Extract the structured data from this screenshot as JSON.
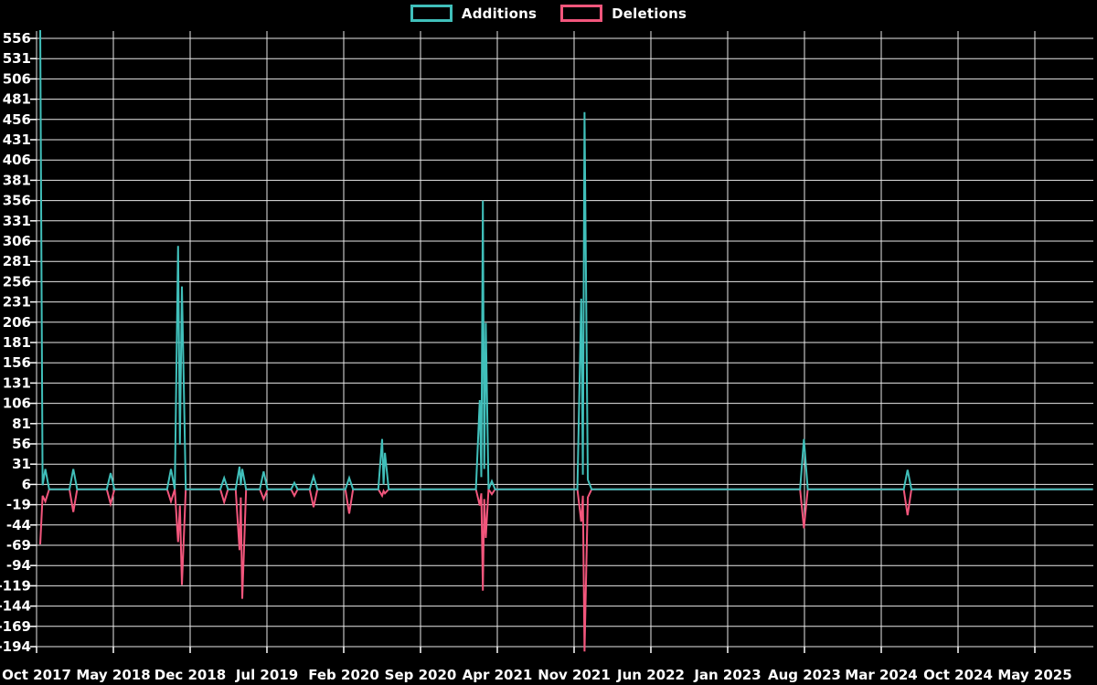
{
  "legend": {
    "items": [
      {
        "label": "Additions"
      },
      {
        "label": "Deletions"
      }
    ]
  },
  "chart_data": {
    "type": "line",
    "title": "",
    "background_color": "#000000",
    "grid_color": "#e8e8e8",
    "text_color": "#ffffff",
    "legend_position": "top-center",
    "grid": true,
    "x_axis": {
      "unit": "months_since_oct_2017",
      "tick_labels": [
        "Oct 2017",
        "May 2018",
        "Dec 2018",
        "Jul 2019",
        "Feb 2020",
        "Sep 2020",
        "Apr 2021",
        "Nov 2021",
        "Jun 2022",
        "Jan 2023",
        "Aug 2023",
        "Mar 2024",
        "Oct 2024",
        "May 2025"
      ],
      "tick_positions": [
        0,
        7,
        14,
        21,
        28,
        35,
        42,
        49,
        56,
        63,
        70,
        77,
        84,
        91
      ],
      "range": [
        0,
        96.3
      ]
    },
    "y_axis": {
      "min": -194,
      "max": 556,
      "tick_step": 25,
      "tick_values": [
        556,
        531,
        506,
        481,
        456,
        431,
        406,
        381,
        356,
        331,
        306,
        281,
        256,
        231,
        206,
        181,
        156,
        131,
        106,
        81,
        56,
        31,
        6,
        -19,
        -44,
        -69,
        -94,
        -119,
        -144,
        -169,
        -194
      ],
      "tick_labels": [
        "556",
        "531",
        "506",
        "481",
        "456",
        "431",
        "406",
        "381",
        "356",
        "331",
        "306",
        "281",
        "256",
        "231",
        "206",
        "181",
        "156",
        "131",
        "106",
        "81",
        "56",
        "31",
        "6",
        "-19",
        "-44",
        "-69",
        "-94",
        "-119",
        "-144",
        "-169",
        "-194"
      ]
    },
    "series": [
      {
        "name": "Additions",
        "color": "#40bfba",
        "points_key": 1
      },
      {
        "name": "Deletions",
        "color": "#f2567c",
        "points_key": 2
      }
    ],
    "points_format": [
      "months_since_oct_2017",
      "additions",
      "deletions"
    ],
    "points": [
      [
        0.33,
        570,
        -68
      ],
      [
        0.55,
        5,
        -8
      ],
      [
        0.8,
        25,
        -15
      ],
      [
        1.15,
        0,
        0
      ],
      [
        3.0,
        0,
        0
      ],
      [
        3.35,
        25,
        -28
      ],
      [
        3.7,
        0,
        0
      ],
      [
        6.4,
        0,
        0
      ],
      [
        6.75,
        20,
        -18
      ],
      [
        7.1,
        0,
        0
      ],
      [
        11.9,
        0,
        0
      ],
      [
        12.25,
        25,
        -15
      ],
      [
        12.6,
        0,
        0
      ],
      [
        12.9,
        300,
        -65
      ],
      [
        13.07,
        55,
        -20
      ],
      [
        13.25,
        250,
        -118
      ],
      [
        13.6,
        0,
        0
      ],
      [
        16.75,
        0,
        0
      ],
      [
        17.1,
        14,
        -16
      ],
      [
        17.45,
        0,
        0
      ],
      [
        18.15,
        0,
        0
      ],
      [
        18.5,
        28,
        -75
      ],
      [
        18.62,
        5,
        -10
      ],
      [
        18.75,
        25,
        -135
      ],
      [
        19.1,
        0,
        0
      ],
      [
        20.35,
        0,
        0
      ],
      [
        20.7,
        22,
        -12
      ],
      [
        21.05,
        0,
        0
      ],
      [
        23.2,
        0,
        0
      ],
      [
        23.5,
        8,
        -8
      ],
      [
        23.8,
        0,
        0
      ],
      [
        24.9,
        0,
        0
      ],
      [
        25.25,
        16,
        -22
      ],
      [
        25.6,
        0,
        0
      ],
      [
        28.15,
        0,
        0
      ],
      [
        28.5,
        14,
        -30
      ],
      [
        28.85,
        0,
        0
      ],
      [
        31.15,
        0,
        0
      ],
      [
        31.5,
        62,
        -8
      ],
      [
        31.63,
        6,
        -2
      ],
      [
        31.76,
        45,
        -5
      ],
      [
        32.1,
        0,
        0
      ],
      [
        40.05,
        0,
        0
      ],
      [
        40.4,
        110,
        -20
      ],
      [
        40.54,
        15,
        -5
      ],
      [
        40.68,
        356,
        -125
      ],
      [
        40.81,
        25,
        -12
      ],
      [
        40.95,
        205,
        -60
      ],
      [
        41.2,
        0,
        0
      ],
      [
        41.5,
        10,
        -6
      ],
      [
        41.8,
        0,
        0
      ],
      [
        49.3,
        0,
        0
      ],
      [
        49.65,
        235,
        -40
      ],
      [
        49.8,
        18,
        -8
      ],
      [
        49.95,
        465,
        -200
      ],
      [
        50.25,
        12,
        -10
      ],
      [
        50.6,
        0,
        0
      ],
      [
        69.6,
        0,
        0
      ],
      [
        69.95,
        62,
        -48
      ],
      [
        70.3,
        0,
        0
      ],
      [
        79.05,
        0,
        0
      ],
      [
        79.4,
        24,
        -32
      ],
      [
        79.75,
        0,
        0
      ],
      [
        96.3,
        0,
        0
      ]
    ]
  }
}
